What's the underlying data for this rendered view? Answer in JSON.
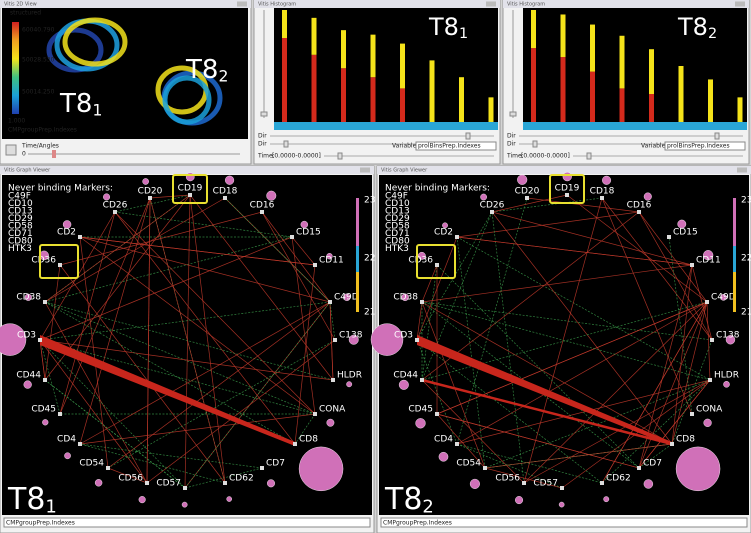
{
  "image_view": {
    "title": "Vitis 2D View",
    "colorbar_title": "structured",
    "colorbar_labels": [
      "60040.790",
      "50028.530",
      "50014.250",
      "1.000"
    ],
    "footer": "CMPgroupPrep.Indexes",
    "control_label": "Time/Angles",
    "control_value": "0",
    "labels": [
      {
        "main": "T8",
        "sub": "1"
      },
      {
        "main": "T8",
        "sub": "2"
      }
    ]
  },
  "histograms": [
    {
      "title": "Vitis Histogram",
      "label": {
        "main": "T8",
        "sub": "1"
      },
      "segments": [
        {
          "color": "#d42a1c",
          "values": [
            75,
            60,
            48,
            40,
            30,
            0,
            0,
            0
          ]
        },
        {
          "color": "#f5e31a",
          "values": [
            25,
            33,
            34,
            38,
            40,
            55,
            40,
            22
          ]
        }
      ],
      "slider_labels": [
        "Dir",
        "Dir"
      ],
      "variable_label": "Variable:",
      "variable_value": "prolBinsPrep.Indexes",
      "time_label": "Time:",
      "time_value": "[0.0000-0.0000]"
    },
    {
      "title": "Vitis Histogram",
      "label": {
        "main": "T8",
        "sub": "2"
      },
      "segments": [
        {
          "color": "#d42a1c",
          "values": [
            66,
            58,
            45,
            30,
            25,
            0,
            0,
            0
          ]
        },
        {
          "color": "#f5e31a",
          "values": [
            34,
            38,
            42,
            47,
            40,
            50,
            38,
            22
          ]
        }
      ],
      "slider_labels": [
        "Dir",
        "Dir"
      ],
      "variable_label": "Variable:",
      "variable_value": "prolBinsPrep.Indexes",
      "time_label": "Time:",
      "time_value": "[0.0000-0.0000]"
    }
  ],
  "graphs": [
    {
      "title": "Vitis Graph Viewer",
      "legend_title": "Never binding Markers:",
      "legend_items": [
        "C49F",
        "CD10",
        "CD13",
        "CD29",
        "CD58",
        "CD71",
        "CD80",
        "HTK3"
      ],
      "scale_labels": [
        "23",
        "22",
        "21"
      ],
      "nodes": [
        "CD19",
        "CD20",
        "CD18",
        "CD26",
        "CD16",
        "CD2",
        "CD15",
        "CD36",
        "CD11",
        "CD38",
        "C49D",
        "CD3",
        "C138",
        "CD44",
        "HLDR",
        "CD45",
        "CONA",
        "CD4",
        "CD8",
        "CD54",
        "CD7",
        "CD56",
        "CD62",
        "CD57"
      ],
      "label": {
        "main": "T8",
        "sub": "1"
      },
      "footer": "CMPgroupPrep.Indexes"
    },
    {
      "title": "Vitis Graph Viewer",
      "legend_title": "Never binding Markers:",
      "legend_items": [
        "C49F",
        "CD10",
        "CD13",
        "CD29",
        "CD58",
        "CD71",
        "CD80",
        "HTK3"
      ],
      "scale_labels": [
        "23",
        "22",
        "21"
      ],
      "nodes": [
        "CD19",
        "CD20",
        "CD18",
        "CD26",
        "CD16",
        "CD2",
        "CD15",
        "CD36",
        "CD11",
        "CD38",
        "C49D",
        "CD3",
        "C138",
        "CD44",
        "HLDR",
        "CD45",
        "CONA",
        "CD4",
        "CD8",
        "CD54",
        "CD7",
        "CD56",
        "CD62",
        "CD57"
      ],
      "label": {
        "main": "T8",
        "sub": "2"
      },
      "footer": "CMPgroupPrep.Indexes"
    }
  ]
}
